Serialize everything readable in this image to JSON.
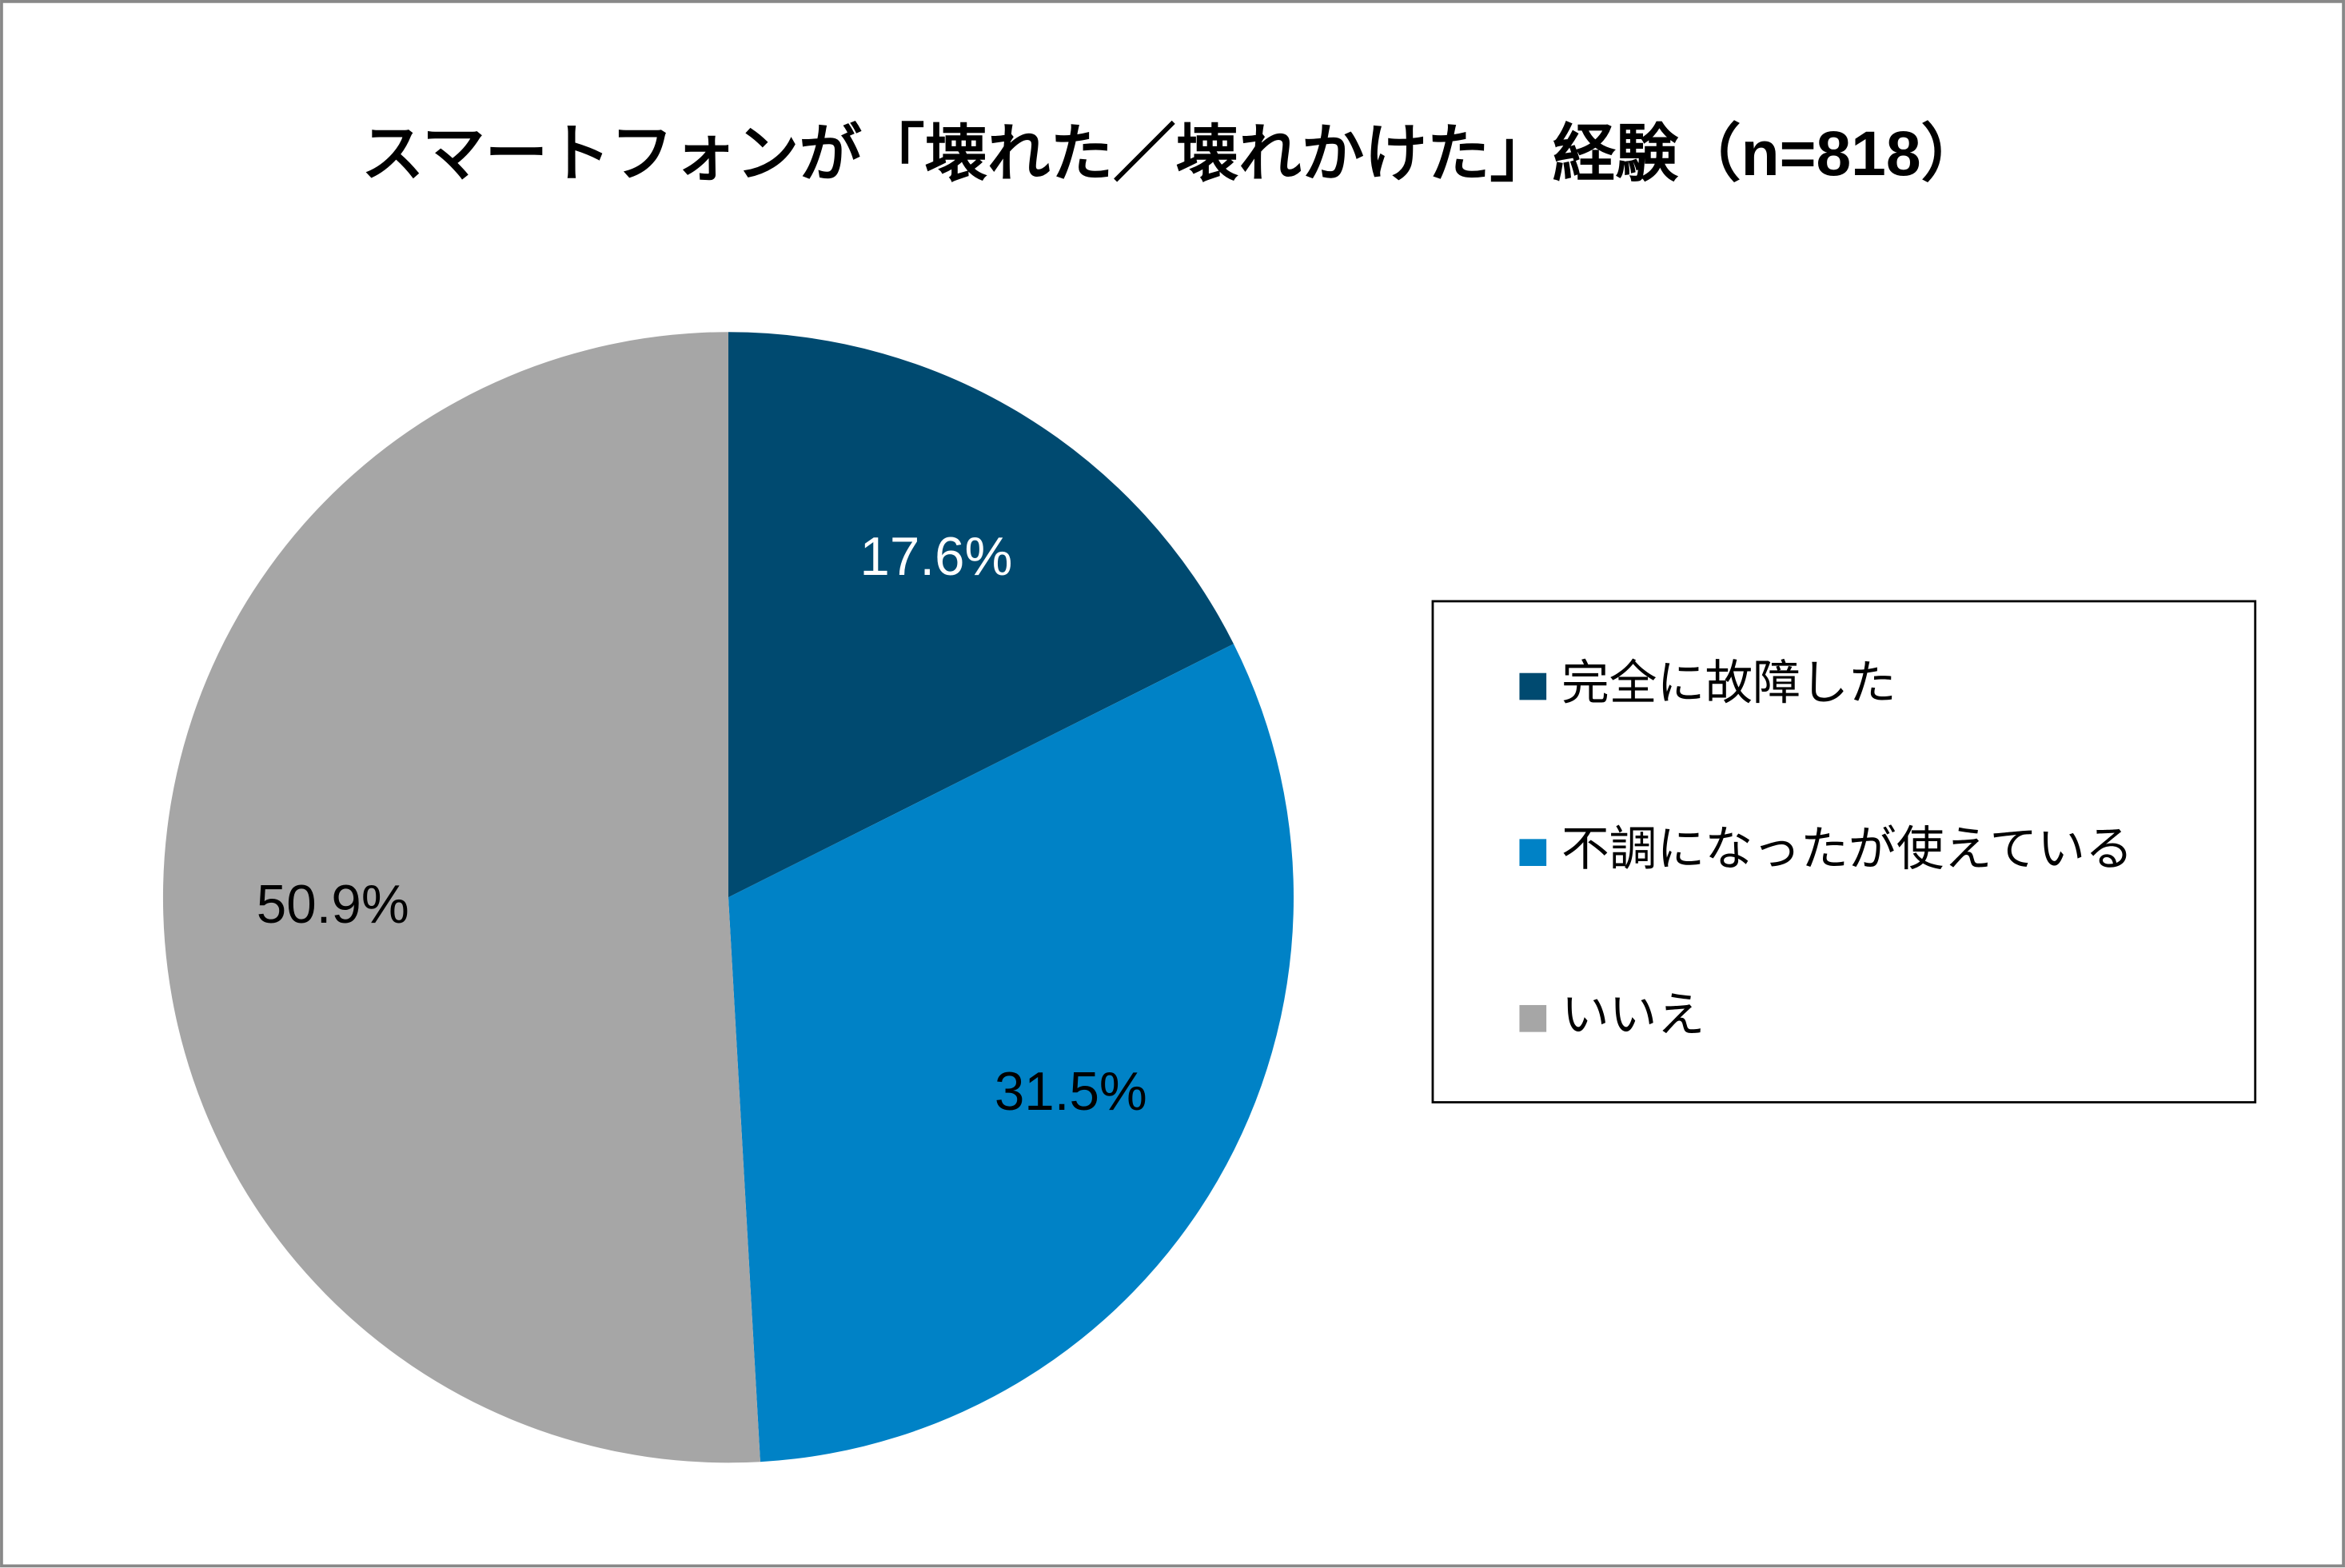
{
  "chart_data": {
    "type": "pie",
    "title": "スマートフォンが「壊れた／壊れかけた」経験（n=818）",
    "categories": [
      "完全に故障した",
      "不調になったが使えている",
      "いいえ"
    ],
    "values": [
      17.6,
      31.5,
      50.9
    ],
    "value_labels": [
      "17.6%",
      "31.5%",
      "50.9%"
    ],
    "colors": [
      "#004a70",
      "#0082c6",
      "#a6a6a6"
    ],
    "legend": "right"
  }
}
